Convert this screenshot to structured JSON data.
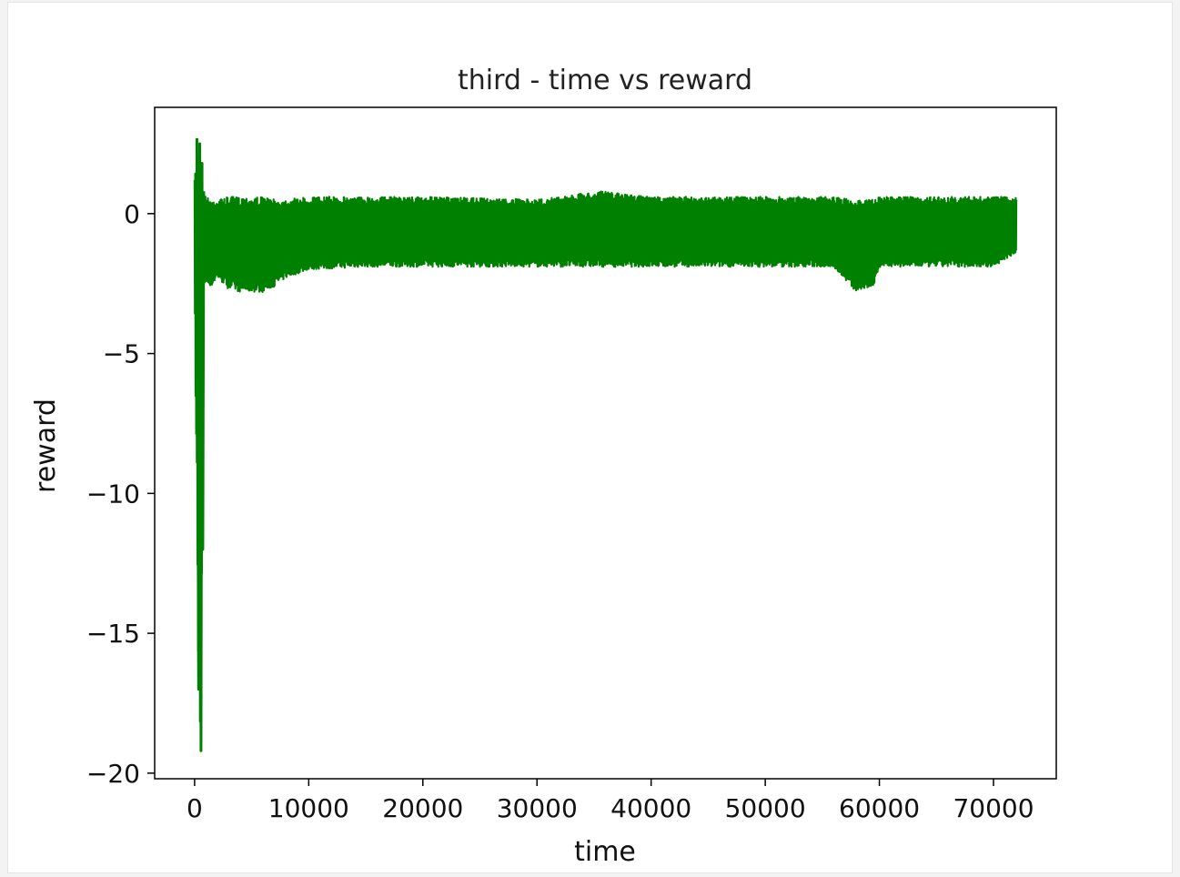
{
  "chart_data": {
    "type": "line",
    "title": "third - time vs reward",
    "xlabel": "time",
    "ylabel": "reward",
    "xlim": [
      -3500,
      75500
    ],
    "ylim": [
      -20.2,
      3.8
    ],
    "x_ticks": [
      {
        "value": 0,
        "label": "0"
      },
      {
        "value": 10000,
        "label": "10000"
      },
      {
        "value": 20000,
        "label": "20000"
      },
      {
        "value": 30000,
        "label": "30000"
      },
      {
        "value": 40000,
        "label": "40000"
      },
      {
        "value": 50000,
        "label": "50000"
      },
      {
        "value": 60000,
        "label": "60000"
      },
      {
        "value": 70000,
        "label": "70000"
      }
    ],
    "y_ticks": [
      {
        "value": 0,
        "label": "0"
      },
      {
        "value": -5,
        "label": "−5"
      },
      {
        "value": -10,
        "label": "−10"
      },
      {
        "value": -15,
        "label": "−15"
      },
      {
        "value": -20,
        "label": "−20"
      }
    ],
    "grid": false,
    "series": [
      {
        "color": "#008000",
        "x": [
          0,
          100,
          200,
          300,
          400,
          500,
          600,
          700,
          800,
          1000,
          1500,
          2000,
          3000,
          4000,
          5000,
          6000,
          7000,
          8000,
          10000,
          15000,
          20000,
          30000,
          35500,
          40000,
          50000,
          56000,
          57500,
          58000,
          59500,
          60000,
          65000,
          70000,
          72000
        ],
        "y_max": [
          1.2,
          2.0,
          2.3,
          2.7,
          2.5,
          2.0,
          1.7,
          1.4,
          0.8,
          0.6,
          0.5,
          0.5,
          0.6,
          0.6,
          0.6,
          0.6,
          0.5,
          0.5,
          0.6,
          0.6,
          0.6,
          0.5,
          0.8,
          0.6,
          0.6,
          0.6,
          0.5,
          0.5,
          0.5,
          0.6,
          0.6,
          0.6,
          0.6
        ],
        "y_min": [
          -2.8,
          -7.5,
          -10.0,
          -17.0,
          -16.0,
          -19.2,
          -17.0,
          -8.0,
          -2.6,
          -2.5,
          -2.6,
          -2.3,
          -2.7,
          -2.8,
          -2.8,
          -2.8,
          -2.6,
          -2.3,
          -2.0,
          -1.9,
          -1.9,
          -1.9,
          -1.9,
          -1.9,
          -1.9,
          -1.9,
          -2.6,
          -2.8,
          -2.6,
          -1.9,
          -1.9,
          -1.9,
          -1.4
        ]
      }
    ]
  }
}
